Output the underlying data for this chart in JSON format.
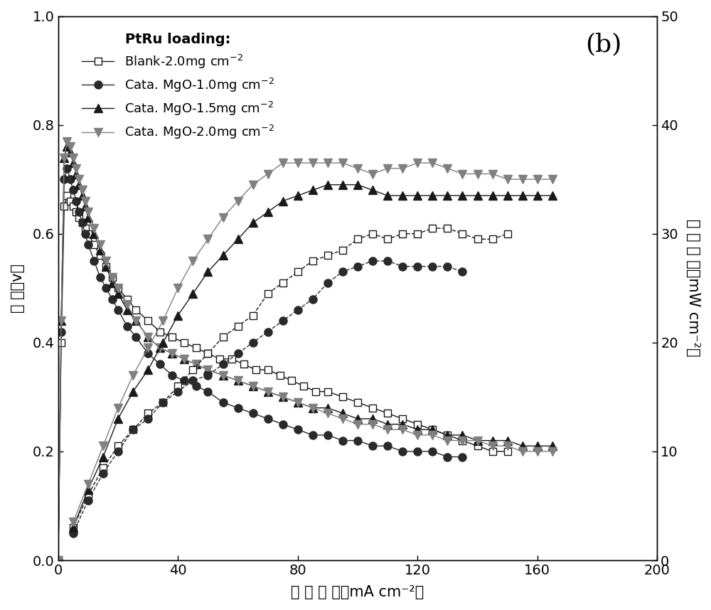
{
  "title_label": "(b)",
  "legend_title": "PtRu loading:",
  "xlabel": "电 流 密 度（mA cm⁻²）",
  "ylabel_left": "电 压（v）",
  "ylabel_right": "功 率 密 度（mW cm⁻²）",
  "xlim": [
    0,
    200
  ],
  "ylim_left": [
    0.0,
    1.0
  ],
  "ylim_right": [
    0,
    50
  ],
  "xticks": [
    0,
    40,
    80,
    120,
    160,
    200
  ],
  "yticks_left": [
    0.0,
    0.2,
    0.4,
    0.6,
    0.8,
    1.0
  ],
  "yticks_right": [
    0,
    10,
    20,
    30,
    40,
    50
  ],
  "blank_V_x": [
    0,
    1,
    2,
    3,
    4,
    5,
    6,
    7,
    8,
    9,
    10,
    12,
    14,
    16,
    18,
    20,
    23,
    26,
    30,
    34,
    38,
    42,
    46,
    50,
    54,
    58,
    62,
    66,
    70,
    74,
    78,
    82,
    86,
    90,
    95,
    100,
    105,
    110,
    115,
    120,
    125,
    130,
    135,
    140,
    145,
    150
  ],
  "blank_V_y": [
    0.0,
    0.4,
    0.65,
    0.67,
    0.66,
    0.65,
    0.64,
    0.63,
    0.62,
    0.61,
    0.6,
    0.58,
    0.56,
    0.54,
    0.52,
    0.5,
    0.48,
    0.46,
    0.44,
    0.42,
    0.41,
    0.4,
    0.39,
    0.38,
    0.37,
    0.37,
    0.36,
    0.35,
    0.35,
    0.34,
    0.33,
    0.32,
    0.31,
    0.31,
    0.3,
    0.29,
    0.28,
    0.27,
    0.26,
    0.25,
    0.24,
    0.23,
    0.22,
    0.21,
    0.2,
    0.2
  ],
  "blank_P_x": [
    5,
    10,
    15,
    20,
    25,
    30,
    35,
    40,
    45,
    50,
    55,
    60,
    65,
    70,
    75,
    80,
    85,
    90,
    95,
    100,
    105,
    110,
    115,
    120,
    125,
    130,
    135,
    140,
    145,
    150
  ],
  "blank_P_y": [
    3.0,
    6.0,
    8.5,
    10.5,
    12.0,
    13.5,
    14.5,
    16.0,
    17.5,
    19.0,
    20.5,
    21.5,
    22.5,
    24.5,
    25.5,
    26.5,
    27.5,
    28.0,
    28.5,
    29.5,
    30.0,
    29.5,
    30.0,
    30.0,
    30.5,
    30.5,
    30.0,
    29.5,
    29.5,
    30.0
  ],
  "mgo10_V_x": [
    0,
    1,
    2,
    3,
    4,
    5,
    6,
    7,
    8,
    9,
    10,
    12,
    14,
    16,
    18,
    20,
    23,
    26,
    30,
    34,
    38,
    42,
    46,
    50,
    55,
    60,
    65,
    70,
    75,
    80,
    85,
    90,
    95,
    100,
    105,
    110,
    115,
    120,
    125,
    130,
    135
  ],
  "mgo10_V_y": [
    0.0,
    0.42,
    0.7,
    0.72,
    0.7,
    0.68,
    0.66,
    0.64,
    0.62,
    0.6,
    0.58,
    0.55,
    0.52,
    0.5,
    0.48,
    0.46,
    0.43,
    0.41,
    0.38,
    0.36,
    0.34,
    0.33,
    0.32,
    0.31,
    0.29,
    0.28,
    0.27,
    0.26,
    0.25,
    0.24,
    0.23,
    0.23,
    0.22,
    0.22,
    0.21,
    0.21,
    0.2,
    0.2,
    0.2,
    0.19,
    0.19
  ],
  "mgo10_P_x": [
    5,
    10,
    15,
    20,
    25,
    30,
    35,
    40,
    45,
    50,
    55,
    60,
    65,
    70,
    75,
    80,
    85,
    90,
    95,
    100,
    105,
    110,
    115,
    120,
    125,
    130,
    135
  ],
  "mgo10_P_y": [
    2.5,
    5.5,
    8.0,
    10.0,
    12.0,
    13.0,
    14.5,
    15.5,
    16.5,
    17.0,
    18.0,
    19.0,
    20.0,
    21.0,
    22.0,
    23.0,
    24.0,
    25.5,
    26.5,
    27.0,
    27.5,
    27.5,
    27.0,
    27.0,
    27.0,
    27.0,
    26.5
  ],
  "mgo15_V_x": [
    0,
    1,
    2,
    3,
    4,
    5,
    6,
    7,
    8,
    9,
    10,
    12,
    14,
    16,
    18,
    20,
    23,
    26,
    30,
    34,
    38,
    42,
    46,
    50,
    55,
    60,
    65,
    70,
    75,
    80,
    85,
    90,
    95,
    100,
    105,
    110,
    115,
    120,
    125,
    130,
    135,
    140,
    145,
    150,
    155,
    160,
    165
  ],
  "mgo15_V_y": [
    0.0,
    0.44,
    0.74,
    0.76,
    0.75,
    0.73,
    0.71,
    0.69,
    0.67,
    0.65,
    0.63,
    0.6,
    0.57,
    0.54,
    0.51,
    0.49,
    0.46,
    0.44,
    0.41,
    0.39,
    0.38,
    0.37,
    0.36,
    0.35,
    0.34,
    0.33,
    0.32,
    0.31,
    0.3,
    0.29,
    0.28,
    0.28,
    0.27,
    0.26,
    0.26,
    0.25,
    0.25,
    0.24,
    0.24,
    0.23,
    0.23,
    0.22,
    0.22,
    0.22,
    0.21,
    0.21,
    0.21
  ],
  "mgo15_P_x": [
    5,
    10,
    15,
    20,
    25,
    30,
    35,
    40,
    45,
    50,
    55,
    60,
    65,
    70,
    75,
    80,
    85,
    90,
    95,
    100,
    105,
    110,
    115,
    120,
    125,
    130,
    135,
    140,
    145,
    150,
    155,
    160,
    165
  ],
  "mgo15_P_y": [
    3.0,
    6.5,
    9.5,
    13.0,
    15.5,
    17.5,
    20.0,
    22.5,
    24.5,
    26.5,
    28.0,
    29.5,
    31.0,
    32.0,
    33.0,
    33.5,
    34.0,
    34.5,
    34.5,
    34.5,
    34.0,
    33.5,
    33.5,
    33.5,
    33.5,
    33.5,
    33.5,
    33.5,
    33.5,
    33.5,
    33.5,
    33.5,
    33.5
  ],
  "mgo20_V_x": [
    0,
    1,
    2,
    3,
    4,
    5,
    6,
    7,
    8,
    9,
    10,
    12,
    14,
    16,
    18,
    20,
    23,
    26,
    30,
    34,
    38,
    42,
    46,
    50,
    55,
    60,
    65,
    70,
    75,
    80,
    85,
    90,
    95,
    100,
    105,
    110,
    115,
    120,
    125,
    130,
    135,
    140,
    145,
    150,
    155,
    160,
    165
  ],
  "mgo20_V_y": [
    0.0,
    0.44,
    0.74,
    0.77,
    0.76,
    0.74,
    0.72,
    0.7,
    0.68,
    0.66,
    0.64,
    0.61,
    0.58,
    0.55,
    0.52,
    0.5,
    0.47,
    0.44,
    0.41,
    0.39,
    0.38,
    0.37,
    0.36,
    0.35,
    0.34,
    0.33,
    0.32,
    0.31,
    0.3,
    0.29,
    0.28,
    0.27,
    0.26,
    0.25,
    0.25,
    0.24,
    0.24,
    0.23,
    0.23,
    0.22,
    0.22,
    0.22,
    0.21,
    0.21,
    0.2,
    0.2,
    0.2
  ],
  "mgo20_P_x": [
    5,
    10,
    15,
    20,
    25,
    30,
    35,
    40,
    45,
    50,
    55,
    60,
    65,
    70,
    75,
    80,
    85,
    90,
    95,
    100,
    105,
    110,
    115,
    120,
    125,
    130,
    135,
    140,
    145,
    150,
    155,
    160,
    165
  ],
  "mgo20_P_y": [
    3.5,
    7.0,
    10.5,
    14.0,
    17.0,
    19.5,
    22.0,
    25.0,
    27.5,
    29.5,
    31.5,
    33.0,
    34.5,
    35.5,
    36.5,
    36.5,
    36.5,
    36.5,
    36.5,
    36.0,
    35.5,
    36.0,
    36.0,
    36.5,
    36.5,
    36.0,
    35.5,
    35.5,
    35.5,
    35.0,
    35.0,
    35.0,
    35.0
  ],
  "background_color": "#ffffff"
}
